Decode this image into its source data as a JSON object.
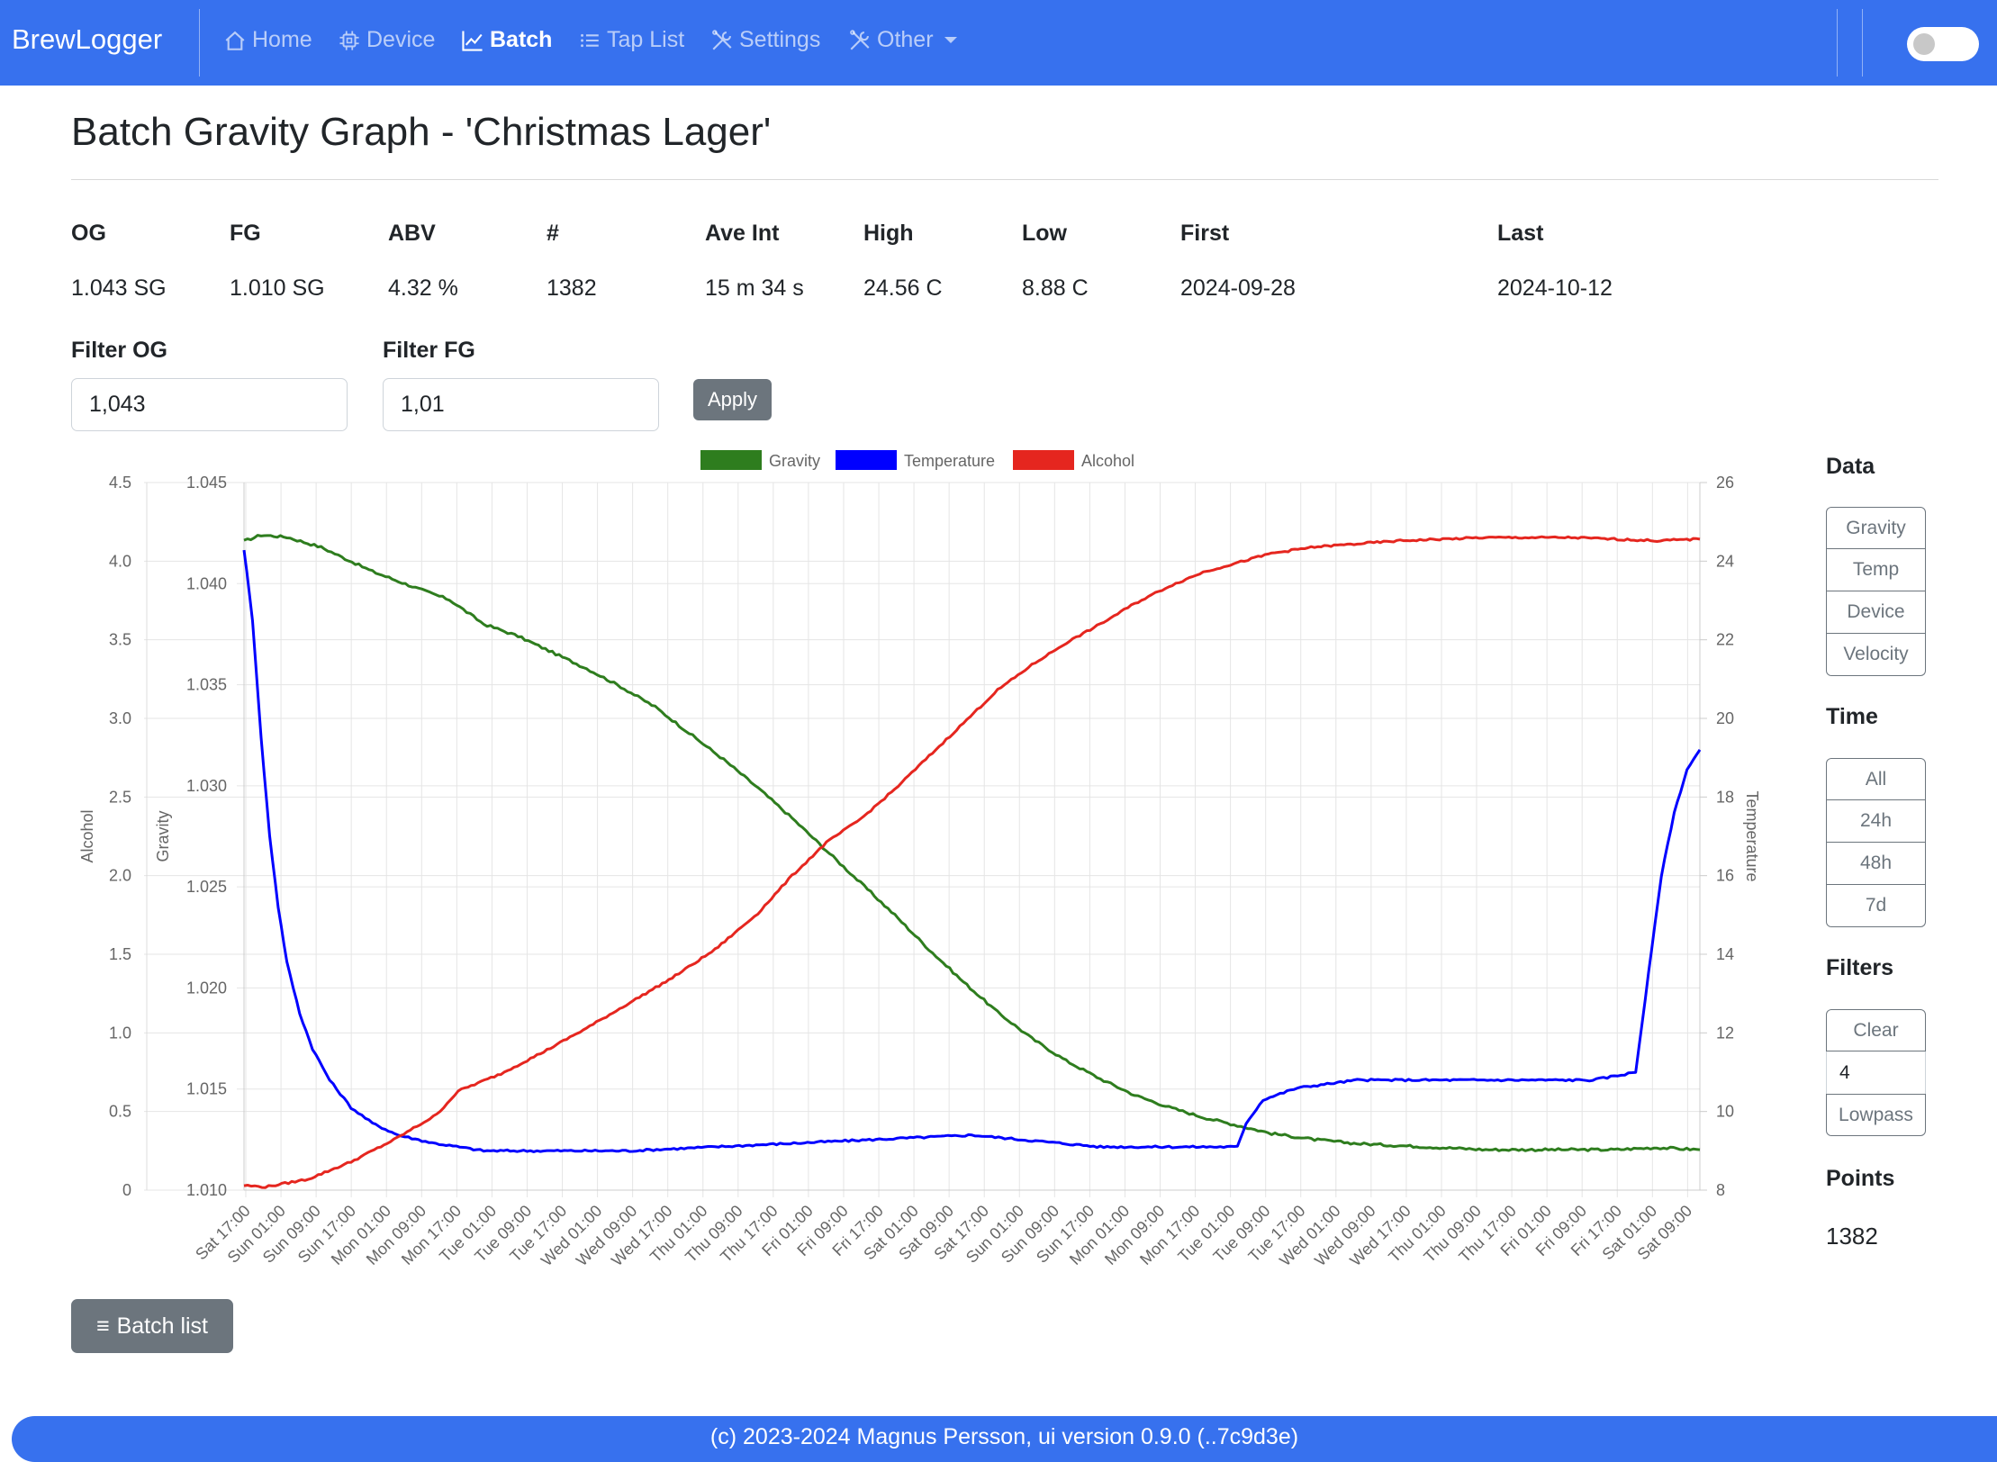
{
  "nav": {
    "brand": "BrewLogger",
    "items": [
      {
        "label": "Home",
        "icon": "house-icon"
      },
      {
        "label": "Device",
        "icon": "cpu-icon"
      },
      {
        "label": "Batch",
        "icon": "graph-up-icon"
      },
      {
        "label": "Tap List",
        "icon": "list-icon"
      },
      {
        "label": "Settings",
        "icon": "tools-icon"
      },
      {
        "label": "Other",
        "icon": "tools-icon"
      }
    ],
    "active": "Batch"
  },
  "page": {
    "title": "Batch Gravity Graph - 'Christmas Lager'"
  },
  "stats": {
    "labels": [
      "OG",
      "FG",
      "ABV",
      "#",
      "Ave Int",
      "High",
      "Low",
      "First",
      "Last"
    ],
    "values": [
      "1.043 SG",
      "1.010 SG",
      "4.32 %",
      "1382",
      "15 m 34 s",
      "24.56 C",
      "8.88 C",
      "2024-09-28",
      "2024-10-12"
    ]
  },
  "filters": {
    "og_label": "Filter OG",
    "og_value": "1,043",
    "fg_label": "Filter FG",
    "fg_value": "1,01",
    "apply_label": "Apply"
  },
  "chart_data": {
    "type": "line",
    "legend": [
      "Gravity",
      "Temperature",
      "Alcohol"
    ],
    "colors": {
      "Gravity": "#2e7d1e",
      "Temperature": "#0000ff",
      "Alcohol": "#e5261f"
    },
    "axes": {
      "alcohol": {
        "label": "Alcohol",
        "range": [
          0,
          4.5
        ],
        "ticks": [
          "0",
          "0.5",
          "1.0",
          "1.5",
          "2.0",
          "2.5",
          "3.0",
          "3.5",
          "4.0",
          "4.5"
        ]
      },
      "gravity": {
        "label": "Gravity",
        "range": [
          1.01,
          1.045
        ],
        "ticks": [
          "1.010",
          "1.015",
          "1.020",
          "1.025",
          "1.030",
          "1.035",
          "1.040",
          "1.045"
        ]
      },
      "temperature": {
        "label": "Temperature",
        "range": [
          8,
          26
        ],
        "ticks": [
          "8",
          "10",
          "12",
          "14",
          "16",
          "18",
          "20",
          "22",
          "24",
          "26"
        ]
      }
    },
    "x_range_hours": [
      0,
      340
    ],
    "x_ticks": [
      "Sat 17:00",
      "Sun 01:00",
      "Sun 09:00",
      "Sun 17:00",
      "Mon 01:00",
      "Mon 09:00",
      "Mon 17:00",
      "Tue 01:00",
      "Tue 09:00",
      "Tue 17:00",
      "Wed 01:00",
      "Wed 09:00",
      "Wed 17:00",
      "Thu 01:00",
      "Thu 09:00",
      "Thu 17:00",
      "Fri 01:00",
      "Fri 09:00",
      "Fri 17:00",
      "Sat 01:00",
      "Sat 09:00",
      "Sat 17:00",
      "Sun 01:00",
      "Sun 09:00",
      "Sun 17:00",
      "Mon 01:00",
      "Mon 09:00",
      "Mon 17:00",
      "Tue 01:00",
      "Tue 09:00",
      "Tue 17:00",
      "Wed 01:00",
      "Wed 09:00",
      "Wed 17:00",
      "Thu 01:00",
      "Thu 09:00",
      "Thu 17:00",
      "Fri 01:00",
      "Fri 09:00",
      "Fri 17:00",
      "Sat 01:00",
      "Sat 09:00"
    ],
    "series": [
      {
        "name": "Gravity",
        "axis": "gravity",
        "points": [
          [
            0,
            1.0421
          ],
          [
            4,
            1.0424
          ],
          [
            10,
            1.0423
          ],
          [
            18,
            1.0418
          ],
          [
            30,
            1.0406
          ],
          [
            40,
            1.0398
          ],
          [
            48,
            1.0392
          ],
          [
            56,
            1.038
          ],
          [
            64,
            1.0374
          ],
          [
            72,
            1.0366
          ],
          [
            80,
            1.0358
          ],
          [
            88,
            1.0349
          ],
          [
            96,
            1.0339
          ],
          [
            104,
            1.0326
          ],
          [
            112,
            1.0313
          ],
          [
            120,
            1.0299
          ],
          [
            128,
            1.0284
          ],
          [
            136,
            1.0268
          ],
          [
            144,
            1.0252
          ],
          [
            152,
            1.0236
          ],
          [
            160,
            1.0219
          ],
          [
            168,
            1.0203
          ],
          [
            176,
            1.0188
          ],
          [
            184,
            1.0175
          ],
          [
            192,
            1.0164
          ],
          [
            200,
            1.0155
          ],
          [
            208,
            1.0147
          ],
          [
            216,
            1.0141
          ],
          [
            224,
            1.0136
          ],
          [
            232,
            1.0132
          ],
          [
            240,
            1.0128
          ],
          [
            250,
            1.0125
          ],
          [
            260,
            1.0123
          ],
          [
            270,
            1.0122
          ],
          [
            280,
            1.0121
          ],
          [
            290,
            1.012
          ],
          [
            300,
            1.012
          ],
          [
            310,
            1.012
          ],
          [
            320,
            1.012
          ],
          [
            330,
            1.0121
          ],
          [
            340,
            1.012
          ]
        ]
      },
      {
        "name": "Temperature",
        "axis": "temperature",
        "points": [
          [
            0,
            24.3
          ],
          [
            2,
            22.5
          ],
          [
            4,
            19.5
          ],
          [
            6,
            17.0
          ],
          [
            8,
            15.2
          ],
          [
            10,
            13.8
          ],
          [
            13,
            12.5
          ],
          [
            16,
            11.6
          ],
          [
            20,
            10.8
          ],
          [
            25,
            10.1
          ],
          [
            30,
            9.7
          ],
          [
            36,
            9.4
          ],
          [
            44,
            9.2
          ],
          [
            56,
            9.0
          ],
          [
            70,
            9.0
          ],
          [
            90,
            9.0
          ],
          [
            110,
            9.1
          ],
          [
            130,
            9.2
          ],
          [
            150,
            9.3
          ],
          [
            170,
            9.4
          ],
          [
            180,
            9.3
          ],
          [
            200,
            9.1
          ],
          [
            220,
            9.1
          ],
          [
            232,
            9.1
          ],
          [
            234,
            9.7
          ],
          [
            238,
            10.3
          ],
          [
            246,
            10.6
          ],
          [
            260,
            10.8
          ],
          [
            280,
            10.8
          ],
          [
            300,
            10.8
          ],
          [
            315,
            10.8
          ],
          [
            320,
            10.9
          ],
          [
            325,
            11.0
          ],
          [
            328,
            13.5
          ],
          [
            331,
            16.0
          ],
          [
            334,
            17.6
          ],
          [
            337,
            18.7
          ],
          [
            340,
            19.2
          ]
        ]
      },
      {
        "name": "Alcohol",
        "axis": "alcohol",
        "points": [
          [
            0,
            0.03
          ],
          [
            5,
            0.02
          ],
          [
            15,
            0.07
          ],
          [
            25,
            0.18
          ],
          [
            35,
            0.32
          ],
          [
            45,
            0.48
          ],
          [
            50,
            0.63
          ],
          [
            60,
            0.74
          ],
          [
            70,
            0.88
          ],
          [
            80,
            1.03
          ],
          [
            90,
            1.19
          ],
          [
            100,
            1.35
          ],
          [
            110,
            1.53
          ],
          [
            120,
            1.76
          ],
          [
            128,
            2.0
          ],
          [
            136,
            2.21
          ],
          [
            144,
            2.36
          ],
          [
            152,
            2.55
          ],
          [
            160,
            2.76
          ],
          [
            168,
            2.97
          ],
          [
            176,
            3.18
          ],
          [
            184,
            3.34
          ],
          [
            192,
            3.48
          ],
          [
            200,
            3.6
          ],
          [
            208,
            3.73
          ],
          [
            216,
            3.84
          ],
          [
            224,
            3.93
          ],
          [
            232,
            3.99
          ],
          [
            240,
            4.05
          ],
          [
            250,
            4.09
          ],
          [
            260,
            4.11
          ],
          [
            270,
            4.13
          ],
          [
            280,
            4.14
          ],
          [
            290,
            4.15
          ],
          [
            300,
            4.15
          ],
          [
            310,
            4.15
          ],
          [
            320,
            4.14
          ],
          [
            330,
            4.13
          ],
          [
            340,
            4.14
          ]
        ]
      }
    ]
  },
  "sidebar": {
    "data_title": "Data",
    "data_buttons": [
      "Gravity",
      "Temp",
      "Device",
      "Velocity"
    ],
    "time_title": "Time",
    "time_buttons": [
      "All",
      "24h",
      "48h",
      "7d"
    ],
    "filters_title": "Filters",
    "filters_clear": "Clear",
    "filters_value": "4",
    "filters_lowpass": "Lowpass",
    "points_title": "Points",
    "points_value": "1382"
  },
  "batch_list_label": "Batch list",
  "footer": {
    "text": "(c) 2023-2024 Magnus Persson, ui version 0.9.0 (..7c9d3e)"
  }
}
